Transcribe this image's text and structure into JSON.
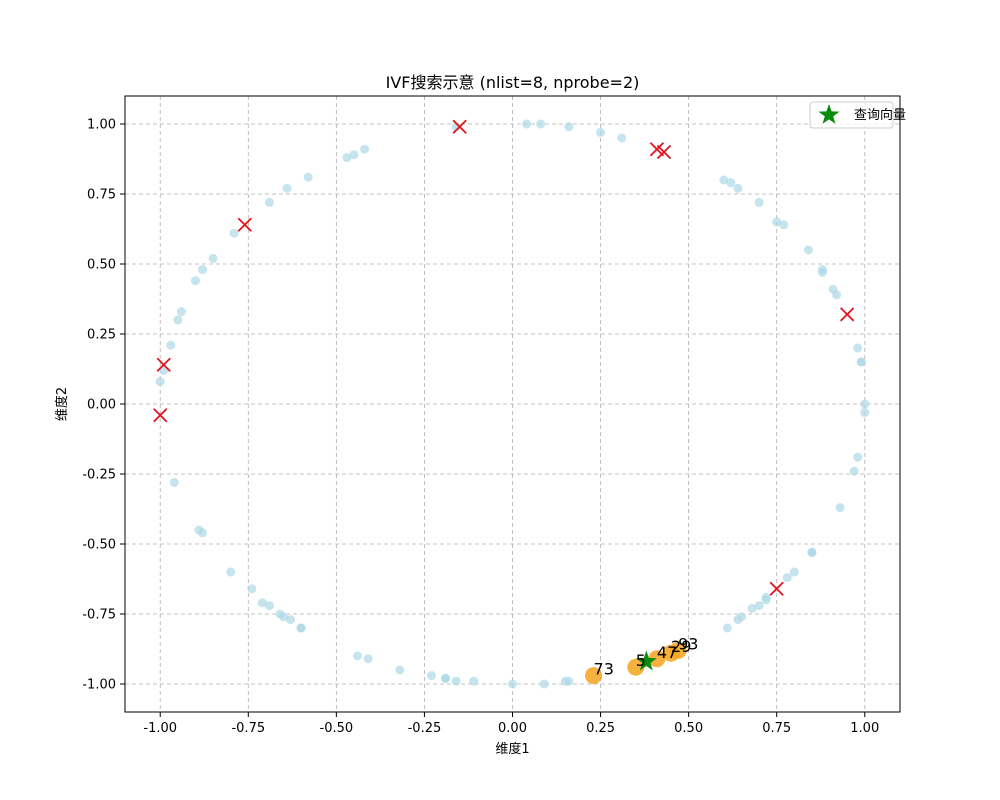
{
  "chart_data": {
    "type": "scatter",
    "title": "IVF搜索示意 (nlist=8, nprobe=2)",
    "xlabel": "维度1",
    "ylabel": "维度2",
    "xlim": [
      -1.1,
      1.1
    ],
    "ylim": [
      -1.1,
      1.1
    ],
    "xticks": [
      "-1.00",
      "-0.75",
      "-0.50",
      "-0.25",
      "0.00",
      "0.25",
      "0.50",
      "0.75",
      "1.00"
    ],
    "yticks": [
      "-1.00",
      "-0.75",
      "-0.50",
      "-0.25",
      "0.00",
      "0.25",
      "0.50",
      "0.75",
      "1.00"
    ],
    "grid": true,
    "legend_position": "top-right",
    "legend_entries": [
      "查询向量"
    ],
    "colors": {
      "data": "#add8e6",
      "centroid": "#e0141e",
      "result": "#f5a31c",
      "query": "#0a8a0a"
    },
    "data_points": [
      [
        0.04,
        1.0
      ],
      [
        0.08,
        1.0
      ],
      [
        0.16,
        0.99
      ],
      [
        0.25,
        0.97
      ],
      [
        0.31,
        0.95
      ],
      [
        -0.16,
        0.99
      ],
      [
        -0.42,
        0.91
      ],
      [
        -0.45,
        0.89
      ],
      [
        -0.47,
        0.88
      ],
      [
        -0.58,
        0.81
      ],
      [
        -0.64,
        0.77
      ],
      [
        -0.69,
        0.72
      ],
      [
        -0.79,
        0.61
      ],
      [
        -0.85,
        0.52
      ],
      [
        -0.88,
        0.48
      ],
      [
        -0.9,
        0.44
      ],
      [
        -0.94,
        0.33
      ],
      [
        -0.95,
        0.3
      ],
      [
        -0.97,
        0.21
      ],
      [
        -0.99,
        0.12
      ],
      [
        -1.0,
        0.08
      ],
      [
        -0.96,
        -0.28
      ],
      [
        -0.89,
        -0.45
      ],
      [
        -0.88,
        -0.46
      ],
      [
        -0.8,
        -0.6
      ],
      [
        -0.74,
        -0.66
      ],
      [
        -0.71,
        -0.71
      ],
      [
        -0.69,
        -0.72
      ],
      [
        -0.66,
        -0.75
      ],
      [
        -0.65,
        -0.76
      ],
      [
        -0.63,
        -0.77
      ],
      [
        -0.6,
        -0.8
      ],
      [
        -0.6,
        -0.8
      ],
      [
        -0.44,
        -0.9
      ],
      [
        -0.41,
        -0.91
      ],
      [
        -0.32,
        -0.95
      ],
      [
        -0.23,
        -0.97
      ],
      [
        -0.19,
        -0.98
      ],
      [
        -0.19,
        -0.98
      ],
      [
        -0.16,
        -0.99
      ],
      [
        -0.11,
        -0.99
      ],
      [
        0.0,
        -1.0
      ],
      [
        0.09,
        -1.0
      ],
      [
        0.15,
        -0.99
      ],
      [
        0.16,
        -0.99
      ],
      [
        0.6,
        0.8
      ],
      [
        0.62,
        0.79
      ],
      [
        0.64,
        0.77
      ],
      [
        0.7,
        0.72
      ],
      [
        0.75,
        0.65
      ],
      [
        0.77,
        0.64
      ],
      [
        0.84,
        0.55
      ],
      [
        0.88,
        0.48
      ],
      [
        0.88,
        0.47
      ],
      [
        0.91,
        0.41
      ],
      [
        0.92,
        0.39
      ],
      [
        0.98,
        0.2
      ],
      [
        0.99,
        0.15
      ],
      [
        0.99,
        0.15
      ],
      [
        1.0,
        0.0
      ],
      [
        1.0,
        -0.03
      ],
      [
        0.98,
        -0.19
      ],
      [
        0.97,
        -0.24
      ],
      [
        0.93,
        -0.37
      ],
      [
        0.85,
        -0.53
      ],
      [
        0.85,
        -0.53
      ],
      [
        0.8,
        -0.6
      ],
      [
        0.78,
        -0.62
      ],
      [
        0.72,
        -0.7
      ],
      [
        0.72,
        -0.69
      ],
      [
        0.7,
        -0.72
      ],
      [
        0.68,
        -0.73
      ],
      [
        0.65,
        -0.76
      ],
      [
        0.64,
        -0.77
      ],
      [
        0.61,
        -0.8
      ]
    ],
    "centroids": [
      [
        -0.15,
        0.99
      ],
      [
        0.41,
        0.91
      ],
      [
        0.43,
        0.9
      ],
      [
        -0.76,
        0.64
      ],
      [
        0.95,
        0.32
      ],
      [
        -0.99,
        0.14
      ],
      [
        -1.0,
        -0.04
      ],
      [
        0.75,
        -0.66
      ]
    ],
    "results": [
      {
        "label": "73",
        "x": 0.23,
        "y": -0.97
      },
      {
        "label": "5",
        "x": 0.35,
        "y": -0.94
      },
      {
        "label": "47",
        "x": 0.41,
        "y": -0.91
      },
      {
        "label": "29",
        "x": 0.45,
        "y": -0.89
      },
      {
        "label": "93",
        "x": 0.47,
        "y": -0.88
      }
    ],
    "query": {
      "x": 0.38,
      "y": -0.92
    }
  }
}
